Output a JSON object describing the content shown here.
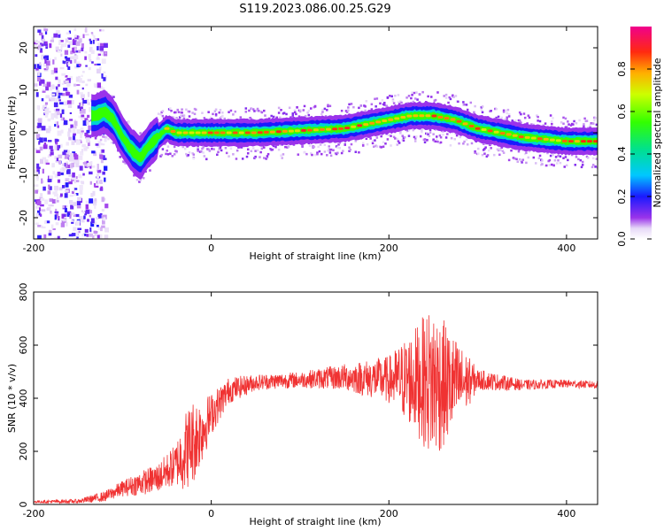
{
  "title": "S119.2023.086.00.25.G29",
  "colors": {
    "snr_line": "#f03232",
    "axis": "#000000"
  },
  "chart_data": [
    {
      "type": "heatmap",
      "name": "spectrogram",
      "xlabel": "Height of straight line (km)",
      "ylabel": "Frequency (Hz)",
      "xlim": [
        -200,
        435
      ],
      "ylim": [
        -25,
        25
      ],
      "xticks": [
        -200,
        0,
        200,
        400
      ],
      "yticks": [
        -20,
        -10,
        0,
        10,
        20
      ],
      "colormap": "rainbow (white-lavender-purple-blue-cyan-green-yellow-orange-red-magenta)",
      "colorbar": {
        "label": "Normalized spectral amplitude",
        "range": [
          0,
          1
        ],
        "ticks": [
          "0.0",
          "0.2",
          "0.4",
          "0.6",
          "0.8"
        ],
        "tick_values": [
          0,
          0.2,
          0.4,
          0.6,
          0.8
        ]
      },
      "ridge_frequency": {
        "x": [
          -130,
          -120,
          -110,
          -100,
          -90,
          -80,
          -70,
          -60,
          -50,
          -40,
          0,
          50,
          100,
          150,
          200,
          225,
          250,
          275,
          300,
          350,
          400,
          435
        ],
        "y": [
          4,
          5,
          3,
          -1,
          -4,
          -6,
          -3,
          -1,
          1,
          0,
          0,
          0,
          0.5,
          1,
          3,
          4,
          4,
          3,
          1,
          -1,
          -2,
          -2
        ]
      },
      "noise_region_x": [
        -200,
        -130
      ]
    },
    {
      "type": "line",
      "name": "snr",
      "xlabel": "Height of straight line (km)",
      "ylabel": "SNR (10 * v/v)",
      "xlim": [
        -200,
        435
      ],
      "ylim": [
        0,
        800
      ],
      "xticks": [
        -200,
        0,
        200,
        400
      ],
      "yticks": [
        0,
        200,
        400,
        600,
        800
      ],
      "envelope": {
        "x": [
          -200,
          -150,
          -120,
          -100,
          -80,
          -60,
          -40,
          -30,
          -20,
          -10,
          0,
          20,
          50,
          100,
          150,
          200,
          230,
          250,
          270,
          300,
          350,
          400,
          435
        ],
        "mean": [
          10,
          12,
          30,
          60,
          80,
          100,
          150,
          200,
          240,
          280,
          340,
          430,
          460,
          470,
          480,
          470,
          470,
          460,
          450,
          470,
          450,
          455,
          450
        ],
        "spread": [
          5,
          8,
          20,
          30,
          45,
          55,
          80,
          150,
          160,
          120,
          80,
          50,
          30,
          30,
          50,
          90,
          200,
          300,
          200,
          40,
          20,
          15,
          15
        ]
      }
    }
  ]
}
